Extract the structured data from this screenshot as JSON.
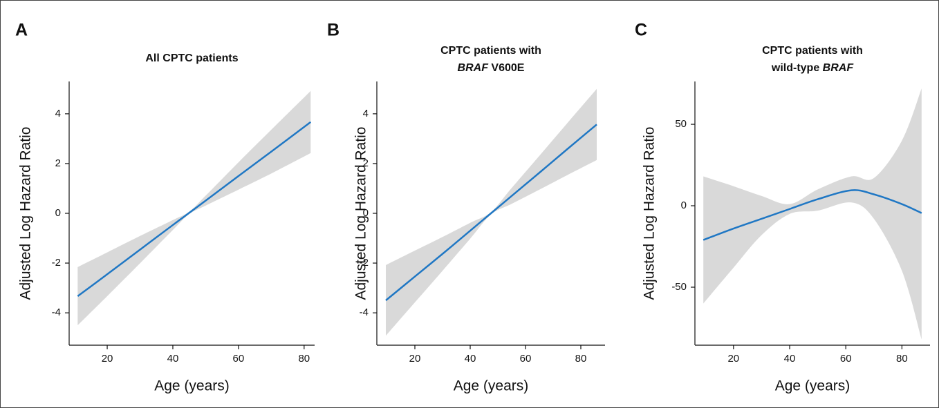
{
  "chart_data": [
    {
      "type": "line",
      "panel": "A",
      "title_lines": [
        [
          {
            "text": "All CPTC patients"
          }
        ]
      ],
      "xlabel": "Age (years)",
      "ylabel": "Adjusted Log Hazard Ratio",
      "x": [
        11,
        20,
        30,
        40,
        45,
        50,
        60,
        70,
        82
      ],
      "values": [
        -3.33,
        -2.45,
        -1.46,
        -0.47,
        0.02,
        0.51,
        1.5,
        2.48,
        3.67
      ],
      "lower": [
        -4.5,
        -3.33,
        -2.01,
        -0.67,
        -0.03,
        0.31,
        0.95,
        1.6,
        2.42
      ],
      "upper": [
        -2.16,
        -1.57,
        -0.91,
        -0.27,
        0.07,
        0.71,
        2.05,
        3.36,
        4.92
      ],
      "color": "#1f77c4",
      "band_color": "#d9d9d9",
      "xlim": [
        8.4,
        83.2
      ],
      "ylim": [
        -5.3,
        5.3
      ],
      "xticks": [
        20,
        40,
        60,
        80
      ],
      "yticks": [
        -4,
        -2,
        0,
        2,
        4
      ]
    },
    {
      "type": "line",
      "panel": "B",
      "title_lines": [
        [
          {
            "text": "CPTC patients with"
          }
        ],
        [
          {
            "text": "BRAF",
            "italic": true
          },
          {
            "text": " V600E"
          }
        ]
      ],
      "xlabel": "Age (years)",
      "ylabel": "Adjusted Log Hazard Ratio",
      "x": [
        9.5,
        20,
        30,
        40,
        47.5,
        55,
        65,
        75,
        85.75
      ],
      "values": [
        -3.5,
        -2.54,
        -1.63,
        -0.7,
        0,
        0.7,
        1.63,
        2.57,
        3.57
      ],
      "lower": [
        -4.92,
        -3.58,
        -2.31,
        -1.02,
        -0.05,
        0.38,
        0.95,
        1.53,
        2.14
      ],
      "upper": [
        -2.08,
        -1.5,
        -0.95,
        -0.38,
        0.05,
        1.02,
        2.31,
        3.61,
        5.0
      ],
      "color": "#1f77c4",
      "band_color": "#d9d9d9",
      "xlim": [
        6.25,
        88.75
      ],
      "ylim": [
        -5.3,
        5.3
      ],
      "xticks": [
        20,
        40,
        60,
        80
      ],
      "yticks": [
        -4,
        -2,
        0,
        2,
        4
      ]
    },
    {
      "type": "line",
      "panel": "C",
      "title_lines": [
        [
          {
            "text": "CPTC patients with"
          }
        ],
        [
          {
            "text": "wild-type "
          },
          {
            "text": "BRAF",
            "italic": true
          }
        ]
      ],
      "xlabel": "Age (years)",
      "ylabel": "Adjusted Log Hazard Ratio",
      "x": [
        9.25,
        20,
        30,
        40,
        50,
        62,
        70,
        80,
        87
      ],
      "values": [
        -21,
        -14,
        -8,
        -2,
        4,
        9.5,
        7,
        1,
        -4.5
      ],
      "lower": [
        -60,
        -38,
        -18,
        -5,
        -3,
        2,
        -8,
        -40,
        -82
      ],
      "upper": [
        18,
        12,
        6,
        1,
        10,
        18,
        17,
        40,
        72
      ],
      "color": "#1f77c4",
      "band_color": "#d9d9d9",
      "xlim": [
        6.25,
        90
      ],
      "ylim": [
        -85.6,
        76.3
      ],
      "xticks": [
        20,
        40,
        60,
        80
      ],
      "yticks": [
        -50,
        0,
        50
      ]
    }
  ]
}
